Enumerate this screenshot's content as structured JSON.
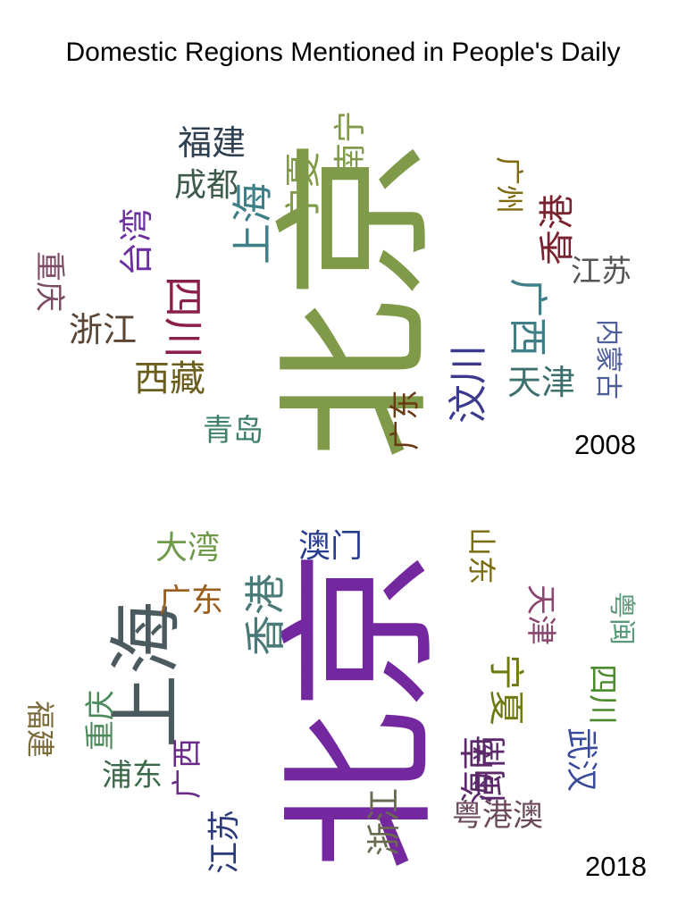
{
  "title": "Domestic Regions Mentioned in People's Daily",
  "clouds": [
    {
      "year": "2008",
      "words": [
        {
          "text": "北京",
          "color": "#7f9a48",
          "orientation": "vertical"
        },
        {
          "text": "四川",
          "color": "#8b1f4a",
          "orientation": "vertical"
        },
        {
          "text": "上海",
          "color": "#3e7f88",
          "orientation": "vertical"
        },
        {
          "text": "宁夏",
          "color": "#7f9a48",
          "orientation": "vertical"
        },
        {
          "text": "南宁",
          "color": "#7f9a48",
          "orientation": "vertical"
        },
        {
          "text": "福建",
          "color": "#2f4050",
          "orientation": "horizontal"
        },
        {
          "text": "成都",
          "color": "#3d5a4b",
          "orientation": "horizontal"
        },
        {
          "text": "台湾",
          "color": "#6b2fa0",
          "orientation": "vertical"
        },
        {
          "text": "重庆",
          "color": "#7b4a65",
          "orientation": "vertical"
        },
        {
          "text": "浙江",
          "color": "#5a4433",
          "orientation": "horizontal"
        },
        {
          "text": "西藏",
          "color": "#6b5e1d",
          "orientation": "horizontal"
        },
        {
          "text": "青岛",
          "color": "#3e7f6a",
          "orientation": "horizontal"
        },
        {
          "text": "广州",
          "color": "#7f6a10",
          "orientation": "vertical"
        },
        {
          "text": "香港",
          "color": "#7a2330",
          "orientation": "vertical"
        },
        {
          "text": "江苏",
          "color": "#555555",
          "orientation": "horizontal"
        },
        {
          "text": "广西",
          "color": "#3e7f88",
          "orientation": "vertical"
        },
        {
          "text": "内蒙古",
          "color": "#4e5e9a",
          "orientation": "vertical"
        },
        {
          "text": "汶川",
          "color": "#3b3a8f",
          "orientation": "vertical"
        },
        {
          "text": "天津",
          "color": "#3e6f6f",
          "orientation": "horizontal"
        },
        {
          "text": "广东",
          "color": "#6a3a14",
          "orientation": "vertical"
        }
      ]
    },
    {
      "year": "2018",
      "words": [
        {
          "text": "北京",
          "color": "#7428a0",
          "orientation": "vertical"
        },
        {
          "text": "上海",
          "color": "#4a5a5e",
          "orientation": "vertical"
        },
        {
          "text": "香港",
          "color": "#4a7a78",
          "orientation": "vertical"
        },
        {
          "text": "澳门",
          "color": "#283c8f",
          "orientation": "horizontal"
        },
        {
          "text": "大湾",
          "color": "#6f9a4a",
          "orientation": "horizontal"
        },
        {
          "text": "广东",
          "color": "#9a5f1e",
          "orientation": "horizontal"
        },
        {
          "text": "山东",
          "color": "#7a6c12",
          "orientation": "vertical"
        },
        {
          "text": "天津",
          "color": "#8a4870",
          "orientation": "vertical"
        },
        {
          "text": "粤闽",
          "color": "#5a9a78",
          "orientation": "vertical"
        },
        {
          "text": "宁夏",
          "color": "#6f7a10",
          "orientation": "vertical"
        },
        {
          "text": "四川",
          "color": "#4a8a2a",
          "orientation": "vertical"
        },
        {
          "text": "武汉",
          "color": "#3a4a9a",
          "orientation": "vertical"
        },
        {
          "text": "闽南",
          "color": "#5c2a6a",
          "orientation": "vertical"
        },
        {
          "text": "海南",
          "color": "#5c2a6a",
          "orientation": "vertical"
        },
        {
          "text": "粤港澳",
          "color": "#6a4a5a",
          "orientation": "horizontal"
        },
        {
          "text": "浙江",
          "color": "#6a6a50",
          "orientation": "vertical"
        },
        {
          "text": "江苏",
          "color": "#2a3a7a",
          "orientation": "vertical"
        },
        {
          "text": "广西",
          "color": "#6a2a8a",
          "orientation": "vertical"
        },
        {
          "text": "浦东",
          "color": "#3a6a4a",
          "orientation": "horizontal"
        },
        {
          "text": "重庆",
          "color": "#4a8a5a",
          "orientation": "vertical"
        },
        {
          "text": "福建",
          "color": "#7a6a3a",
          "orientation": "vertical"
        }
      ]
    }
  ]
}
